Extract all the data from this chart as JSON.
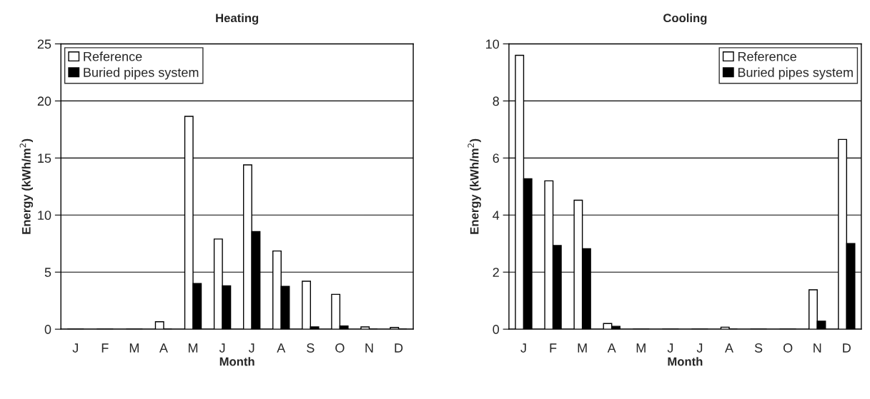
{
  "chart_data": [
    {
      "type": "bar",
      "title": "Heating",
      "xlabel": "Month",
      "ylabel": "Energy (kWh/m$^{2}$)",
      "categories": [
        "J",
        "F",
        "M",
        "A",
        "M",
        "J",
        "J",
        "A",
        "S",
        "O",
        "N",
        "D"
      ],
      "series": [
        {
          "name": "Reference",
          "color": "#ffffff",
          "values": [
            0,
            0,
            0,
            0.65,
            18.65,
            7.9,
            14.4,
            6.85,
            4.2,
            3.05,
            0.2,
            0.15
          ]
        },
        {
          "name": "Buried pipes system",
          "color": "#000000",
          "values": [
            0,
            0,
            0,
            0,
            4.0,
            3.8,
            8.55,
            3.75,
            0.2,
            0.28,
            0,
            0
          ]
        }
      ],
      "ylim": [
        0,
        25
      ],
      "yticks": [
        0,
        5,
        10,
        15,
        20,
        25
      ],
      "grid": "y",
      "legend": "top left"
    },
    {
      "type": "bar",
      "title": "Cooling",
      "xlabel": "Month",
      "ylabel": "Energy (kWh/m$^{2}$)",
      "categories": [
        "J",
        "F",
        "M",
        "A",
        "M",
        "J",
        "J",
        "A",
        "S",
        "O",
        "N",
        "D"
      ],
      "series": [
        {
          "name": "Reference",
          "color": "#ffffff",
          "values": [
            9.6,
            5.2,
            4.52,
            0.2,
            0,
            0,
            0,
            0.07,
            0,
            0,
            1.38,
            6.65
          ]
        },
        {
          "name": "Buried pipes system",
          "color": "#000000",
          "values": [
            5.27,
            2.93,
            2.82,
            0.1,
            0,
            0,
            0,
            0,
            0,
            0,
            0.28,
            3.0
          ]
        }
      ],
      "ylim": [
        0,
        10
      ],
      "yticks": [
        0,
        2,
        4,
        6,
        8,
        10
      ],
      "grid": "y",
      "legend": "top right"
    }
  ]
}
